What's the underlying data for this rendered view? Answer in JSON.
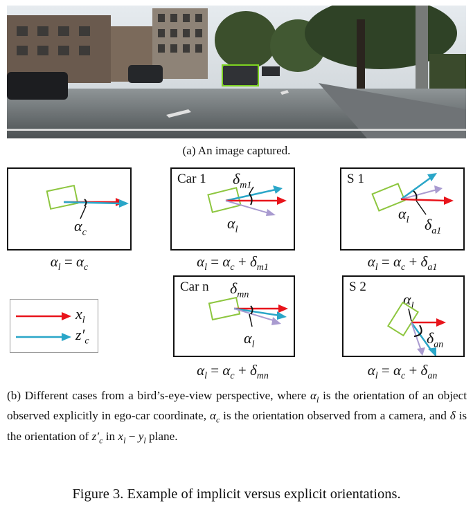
{
  "photo_caption": "(a) An image captured.",
  "panels": [
    {
      "id": "p1",
      "label": "",
      "angle": "α",
      "angle_sub": "c",
      "formula": "αl = αc"
    },
    {
      "id": "p2",
      "label": "Car 1",
      "delta": "δ",
      "delta_sub": "m1",
      "alpha": "α",
      "alpha_sub": "l",
      "formula": "αl = αc + δm1"
    },
    {
      "id": "p3",
      "label": "S 1",
      "delta": "δ",
      "delta_sub": "a1",
      "alpha": "α",
      "alpha_sub": "l",
      "formula": "αl = αc + δa1"
    },
    {
      "id": "p4",
      "label": "Car n",
      "delta": "δ",
      "delta_sub": "mn",
      "alpha": "α",
      "alpha_sub": "l",
      "formula": "αl = αc + δmn"
    },
    {
      "id": "p5",
      "label": "S 2",
      "delta": "δ",
      "delta_sub": "an",
      "alpha": "α",
      "alpha_sub": "l",
      "formula": "αl = αc + δan"
    }
  ],
  "legend": [
    {
      "symbol": "x",
      "sub": "l",
      "color": "#e8141b"
    },
    {
      "symbol": "z′",
      "sub": "c",
      "color": "#2aa6c8"
    }
  ],
  "colors": {
    "red": "#e8141b",
    "cyan": "#2aa6c8",
    "purple": "#a99bd0",
    "green": "#8dc63f"
  },
  "body_caption": {
    "part1": "(b) Different cases from a bird’s-eye-view perspective, where",
    "part2": "is the orientation of an object observed explicitly in ego-car coordinate,",
    "part3": "is the orientation observed from a camera, and",
    "part4": "is the orientation of",
    "part5": "in",
    "part6": "plane."
  },
  "figure_caption": "Figure 3. Example of implicit versus explicit orientations."
}
